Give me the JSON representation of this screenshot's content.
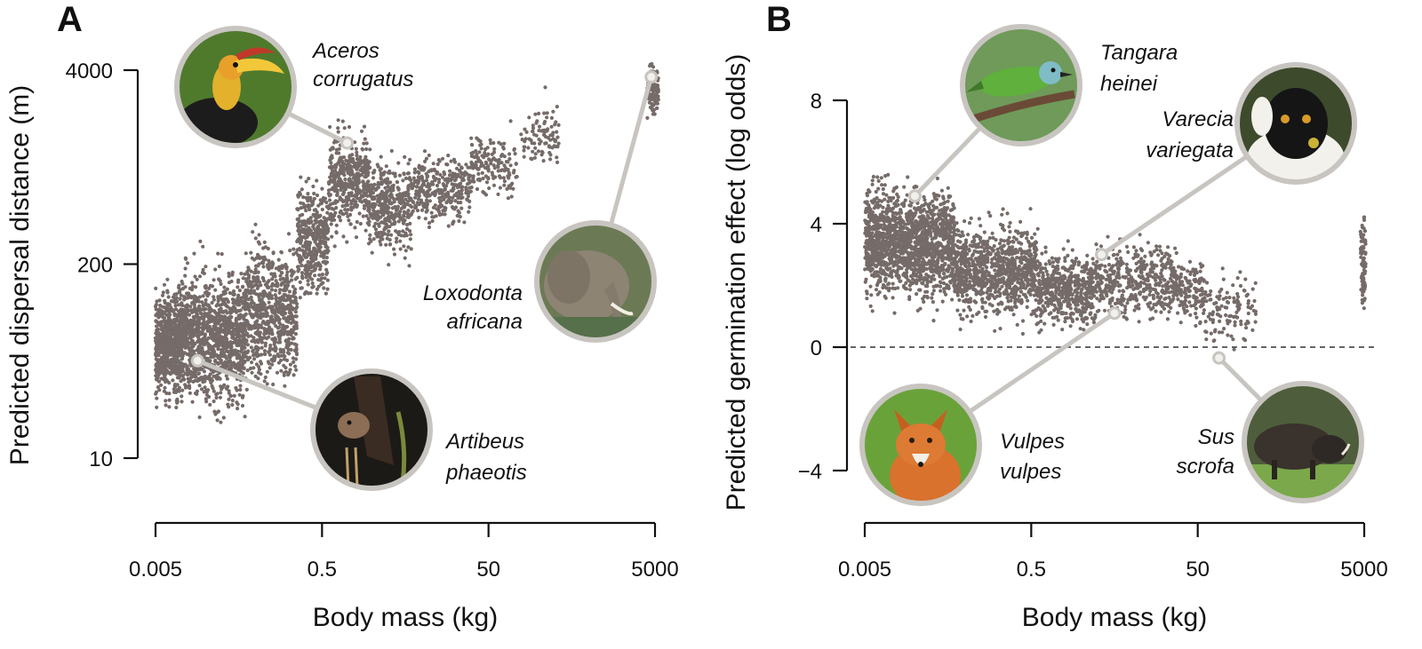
{
  "panels": [
    {
      "id": "A",
      "label": "A",
      "ylabel": "Predicted dispersal distance (m)",
      "xlabel": "Body mass (kg)",
      "species": [
        {
          "line1": "Aceros",
          "line2": "corrugatus",
          "photo_icon": "hornbill-photo-icon"
        },
        {
          "line1": "Loxodonta",
          "line2": "africana",
          "photo_icon": "elephant-photo-icon"
        },
        {
          "line1": "Artibeus",
          "line2": "phaeotis",
          "photo_icon": "bat-photo-icon"
        }
      ]
    },
    {
      "id": "B",
      "label": "B",
      "ylabel": "Predicted germination effect (log odds)",
      "xlabel": "Body mass (kg)",
      "species": [
        {
          "line1": "Tangara",
          "line2": "heinei",
          "photo_icon": "tanager-photo-icon"
        },
        {
          "line1": "Varecia",
          "line2": "variegata",
          "photo_icon": "lemur-photo-icon"
        },
        {
          "line1": "Vulpes",
          "line2": "vulpes",
          "photo_icon": "fox-photo-icon"
        },
        {
          "line1": "Sus",
          "line2": "scrofa",
          "photo_icon": "boar-photo-icon"
        }
      ]
    }
  ],
  "colors": {
    "points": "#756b68",
    "callout_ring": "#c8c5c1",
    "axis": "#111111",
    "reference_line": "#333333"
  },
  "chart_data": [
    {
      "type": "scatter",
      "panel": "A",
      "xlabel": "Body mass (kg)",
      "ylabel": "Predicted dispersal distance (m)",
      "x_scale": "log",
      "y_scale": "log",
      "xlim": [
        0.005,
        5000
      ],
      "ylim": [
        10,
        4000
      ],
      "x_ticks": [
        "0.005",
        "0.5",
        "50",
        "5000"
      ],
      "y_ticks": [
        "10",
        "200",
        "4000"
      ],
      "clusters": [
        {
          "x_range": [
            0.005,
            0.011
          ],
          "y_range": [
            20,
            170
          ],
          "approx_points": 700
        },
        {
          "x_range": [
            0.011,
            0.06
          ],
          "y_range": [
            16,
            260
          ],
          "approx_points": 1100
        },
        {
          "x_range": [
            0.06,
            0.25
          ],
          "y_range": [
            22,
            420
          ],
          "approx_points": 700
        },
        {
          "x_range": [
            0.25,
            0.6
          ],
          "y_range": [
            90,
            900
          ],
          "approx_points": 380
        },
        {
          "x_range": [
            0.6,
            1.8
          ],
          "y_range": [
            250,
            2000
          ],
          "approx_points": 420
        },
        {
          "x_range": [
            1.8,
            6
          ],
          "y_range": [
            190,
            1300
          ],
          "approx_points": 380
        },
        {
          "x_range": [
            6,
            30
          ],
          "y_range": [
            300,
            1300
          ],
          "approx_points": 300
        },
        {
          "x_range": [
            30,
            110
          ],
          "y_range": [
            500,
            1800
          ],
          "approx_points": 160
        },
        {
          "x_range": [
            120,
            350
          ],
          "y_range": [
            700,
            3000
          ],
          "approx_points": 90
        },
        {
          "x_range": [
            4000,
            5500
          ],
          "y_range": [
            1800,
            4800
          ],
          "approx_points": 120
        }
      ],
      "highlighted_points": [
        {
          "species": "Aceros corrugatus",
          "x": 1.0,
          "y": 1300
        },
        {
          "species": "Loxodonta africana",
          "x": 4500,
          "y": 3600
        },
        {
          "species": "Artibeus phaeotis",
          "x": 0.016,
          "y": 45
        }
      ]
    },
    {
      "type": "scatter",
      "panel": "B",
      "xlabel": "Body mass (kg)",
      "ylabel": "Predicted germination effect (log odds)",
      "x_scale": "log",
      "y_scale": "linear",
      "xlim": [
        0.005,
        5000
      ],
      "ylim": [
        -6,
        10
      ],
      "x_ticks": [
        "0.005",
        "0.5",
        "50",
        "5000"
      ],
      "y_ticks": [
        -4,
        0,
        4,
        8
      ],
      "reference_line": {
        "y": 0,
        "style": "dashed"
      },
      "clusters": [
        {
          "x_range": [
            0.005,
            0.06
          ],
          "y_range": [
            1.0,
            5.8
          ],
          "approx_points": 1500
        },
        {
          "x_range": [
            0.06,
            0.6
          ],
          "y_range": [
            0.5,
            4.5
          ],
          "approx_points": 900
        },
        {
          "x_range": [
            0.6,
            3
          ],
          "y_range": [
            0.2,
            3.5
          ],
          "approx_points": 500
        },
        {
          "x_range": [
            3,
            30
          ],
          "y_range": [
            0.5,
            3.8
          ],
          "approx_points": 450
        },
        {
          "x_range": [
            30,
            60
          ],
          "y_range": [
            0.5,
            3.2
          ],
          "approx_points": 120
        },
        {
          "x_range": [
            60,
            250
          ],
          "y_range": [
            -0.3,
            2.8
          ],
          "approx_points": 120
        },
        {
          "x_range": [
            4500,
            5200
          ],
          "y_range": [
            0.8,
            4.8
          ],
          "approx_points": 80
        }
      ],
      "highlighted_points": [
        {
          "species": "Tangara heinei",
          "x": 0.02,
          "y": 4.9
        },
        {
          "species": "Varecia variegata",
          "x": 3.5,
          "y": 3.0
        },
        {
          "species": "Vulpes vulpes",
          "x": 5.0,
          "y": 1.1
        },
        {
          "species": "Sus scrofa",
          "x": 90,
          "y": -0.35
        }
      ]
    }
  ]
}
